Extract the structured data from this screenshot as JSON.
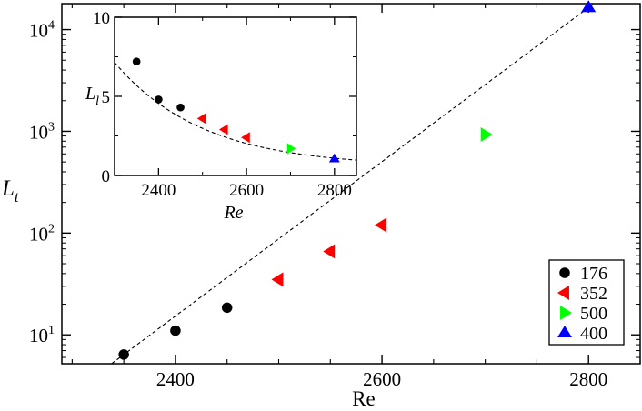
{
  "chart_data": {
    "type": "scatter",
    "yscale": "log",
    "xlabel": "Re",
    "ylabel_main": "L",
    "ylabel_sub": "t",
    "xlim": [
      2290,
      2850
    ],
    "ylim": [
      5.2,
      18000
    ],
    "xticks": [
      2400,
      2600,
      2800
    ],
    "xtick_labels": [
      "2400",
      "2600",
      "2800"
    ],
    "yticks": [
      10,
      100,
      1000,
      10000
    ],
    "ytick_exponents": [
      "1",
      "2",
      "3",
      "4"
    ],
    "ytick_base": "10",
    "series": [
      {
        "name": "176",
        "marker": "circle",
        "color": "#000000",
        "x": [
          2350,
          2400,
          2450
        ],
        "y": [
          6.4,
          11.0,
          18.5
        ]
      },
      {
        "name": "352",
        "marker": "triangle-left",
        "color": "#ff0000",
        "x": [
          2500,
          2550,
          2600
        ],
        "y": [
          35,
          66,
          120
        ]
      },
      {
        "name": "500",
        "marker": "triangle-right",
        "color": "#00ff00",
        "x": [
          2700
        ],
        "y": [
          930
        ]
      },
      {
        "name": "400",
        "marker": "triangle-up",
        "color": "#0000ff",
        "x": [
          2800
        ],
        "y": [
          16500
        ]
      }
    ],
    "fit_curve": {
      "style": "dashed",
      "x0": 2350,
      "y0": 6.4,
      "x1": 2800,
      "y1": 16500
    },
    "legend": {
      "position": "bottom-right"
    },
    "inset": {
      "type": "scatter",
      "xlabel": "Re",
      "ylabel_main": "L",
      "ylabel_sub": "l",
      "xlim": [
        2300,
        2850
      ],
      "ylim": [
        0,
        10
      ],
      "xticks": [
        2400,
        2600,
        2800
      ],
      "xtick_labels": [
        "2400",
        "2600",
        "2800"
      ],
      "yticks": [
        0,
        5,
        10
      ],
      "ytick_labels": [
        "0",
        "5",
        "10"
      ],
      "series": [
        {
          "name": "176",
          "marker": "circle",
          "color": "#000000",
          "x": [
            2350,
            2400,
            2450
          ],
          "y": [
            7.2,
            4.8,
            4.3
          ]
        },
        {
          "name": "352",
          "marker": "triangle-left",
          "color": "#ff0000",
          "x": [
            2500,
            2550,
            2600
          ],
          "y": [
            3.6,
            2.9,
            2.4
          ]
        },
        {
          "name": "500",
          "marker": "triangle-right",
          "color": "#00ff00",
          "x": [
            2700
          ],
          "y": [
            1.7
          ]
        },
        {
          "name": "400",
          "marker": "triangle-up",
          "color": "#0000ff",
          "x": [
            2800
          ],
          "y": [
            1.05
          ]
        }
      ],
      "fit_curve": {
        "style": "dashed",
        "A": 6.6,
        "xc": 2300,
        "tau": 200,
        "c": 0.55
      }
    }
  }
}
